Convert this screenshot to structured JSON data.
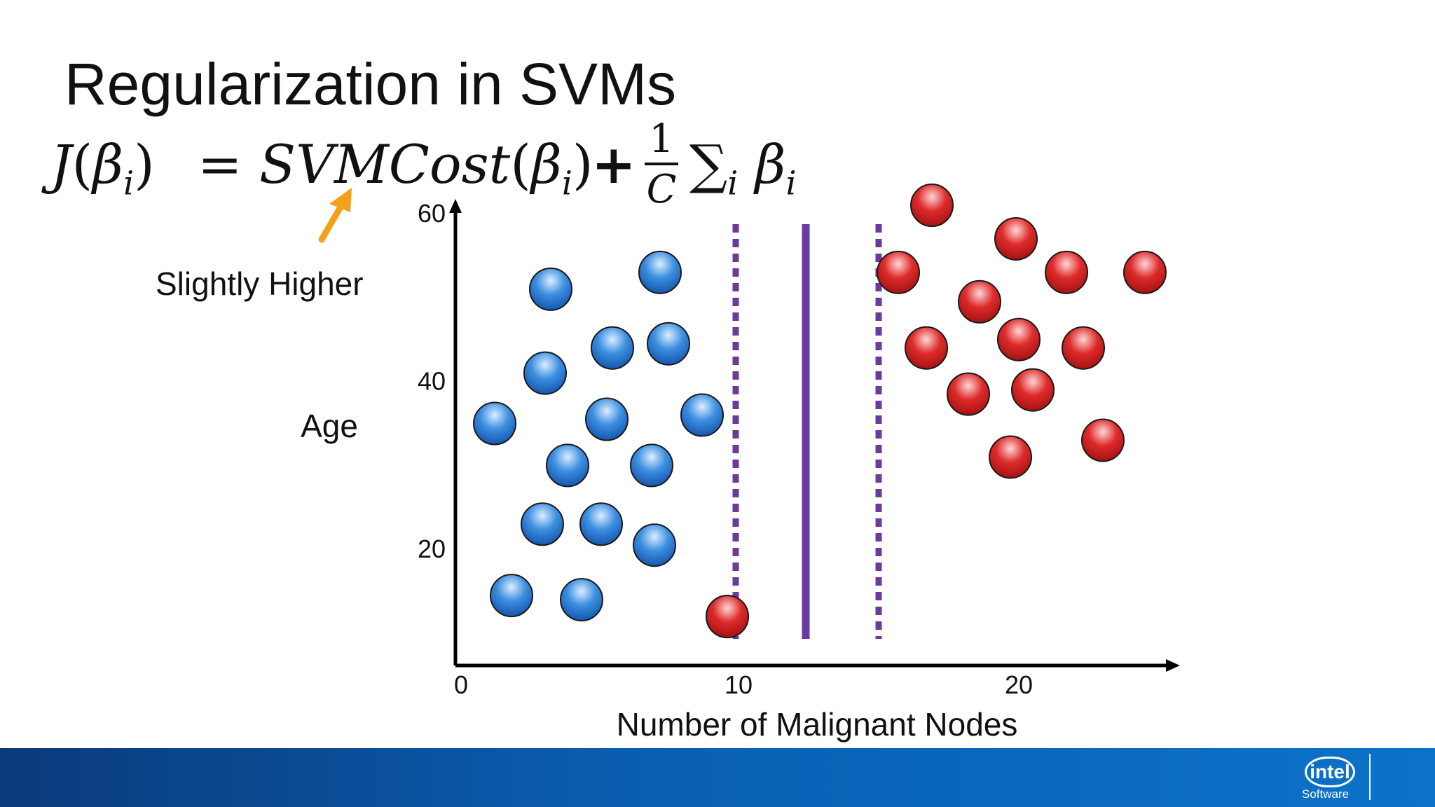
{
  "slide": {
    "title": "Regularization in SVMs",
    "formula": {
      "lhs_func": "J",
      "beta": "β",
      "index": "i",
      "equals": "=",
      "cost_func": "SVMCost",
      "plus": "+",
      "frac_num": "1",
      "frac_den": "C",
      "sum": "∑"
    },
    "annotation": "Slightly Higher",
    "annotation_arrow_color": "#f5a01a",
    "footer": {
      "logo_text": "intel",
      "logo_subtext": "Software",
      "bar_color": "#0a5fb3"
    }
  },
  "chart_data": {
    "type": "scatter",
    "xlabel": "Number of Malignant Nodes",
    "ylabel": "Age",
    "xlim": [
      0,
      25
    ],
    "ylim": [
      7,
      60
    ],
    "x_ticks": [
      0,
      10,
      20
    ],
    "y_ticks": [
      20,
      40,
      60
    ],
    "colors": {
      "class_a": "#1f73c8",
      "class_b": "#d11f1f",
      "boundary": "#6a3aa0"
    },
    "series": [
      {
        "class": "class_a",
        "points": [
          [
            3.4,
            51
          ],
          [
            7.3,
            53
          ],
          [
            3.2,
            41
          ],
          [
            5.6,
            44
          ],
          [
            7.6,
            44.5
          ],
          [
            5.4,
            35.5
          ],
          [
            8.8,
            36
          ],
          [
            1.4,
            35
          ],
          [
            4.0,
            30
          ],
          [
            7.0,
            30
          ],
          [
            3.1,
            23
          ],
          [
            5.2,
            23
          ],
          [
            7.1,
            20.5
          ],
          [
            2.0,
            14.5
          ],
          [
            4.5,
            14
          ],
          [
            9.7,
            12
          ]
        ]
      },
      {
        "class": "class_b",
        "points": [
          [
            9.7,
            12
          ],
          [
            17.0,
            61
          ],
          [
            20.0,
            57
          ],
          [
            15.8,
            53
          ],
          [
            21.8,
            53
          ],
          [
            24.6,
            53
          ],
          [
            18.7,
            49.5
          ],
          [
            16.8,
            44
          ],
          [
            20.1,
            45
          ],
          [
            22.4,
            44
          ],
          [
            18.3,
            38.5
          ],
          [
            20.6,
            39
          ],
          [
            23.1,
            33
          ],
          [
            19.8,
            31
          ]
        ]
      }
    ],
    "boundaries": [
      {
        "x": 10.0,
        "style": "dashed"
      },
      {
        "x": 12.5,
        "style": "solid"
      },
      {
        "x": 15.1,
        "style": "dashed"
      }
    ]
  }
}
